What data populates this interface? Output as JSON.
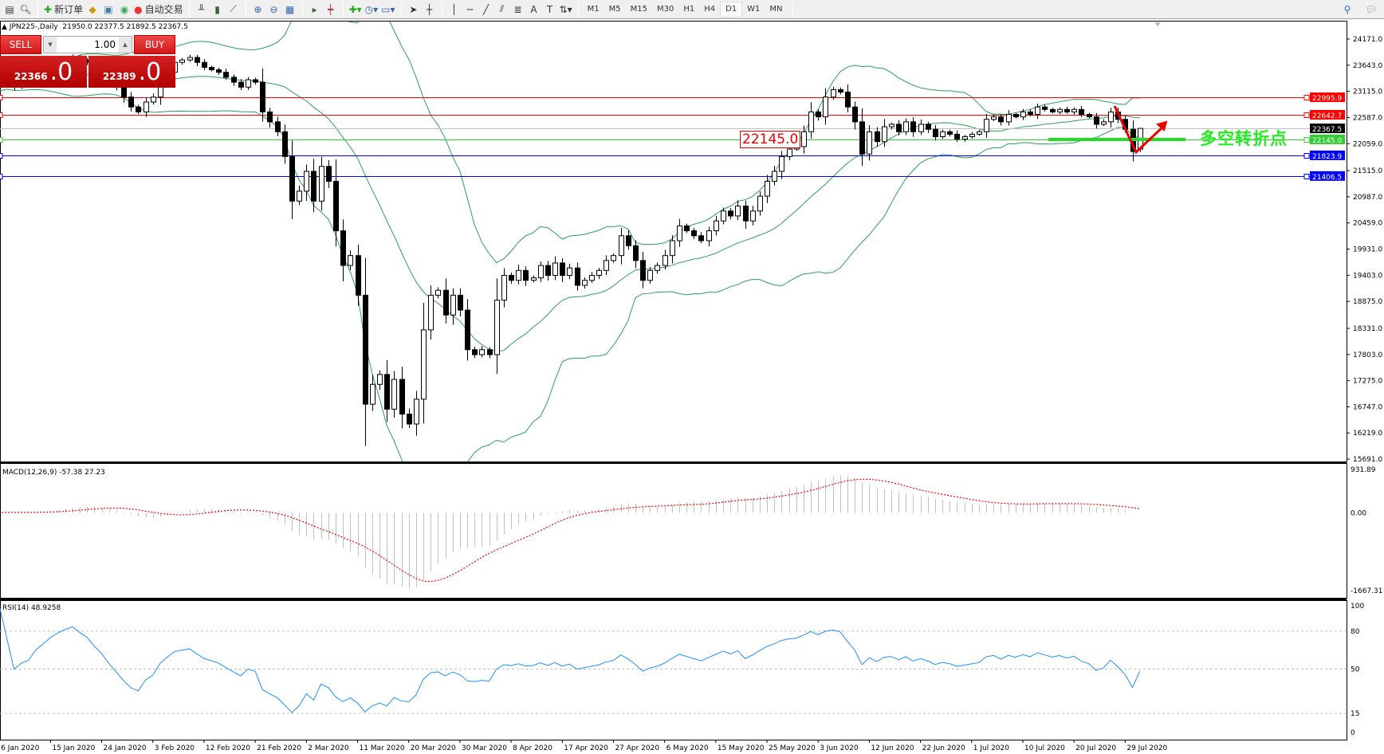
{
  "toolbar": {
    "new_order": "新订单",
    "auto_trading": "自动交易",
    "timeframes": [
      "M1",
      "M5",
      "M15",
      "M30",
      "H1",
      "H4",
      "D1",
      "W1",
      "MN"
    ],
    "active_timeframe": "D1"
  },
  "chart_header": {
    "symbol": "JPN225-,Daily",
    "ohlc_text": "21950.0 22377.5 21892.5 22367.5"
  },
  "trade_panel": {
    "sell_label": "SELL",
    "buy_label": "BUY",
    "lot": "1.00",
    "sell_price_main": "22366",
    "sell_price_frac": ".0",
    "buy_price_main": "22389",
    "buy_price_frac": ".0"
  },
  "annotation": {
    "price_label": "22145.0",
    "text": "多空转折点",
    "colors": {
      "text": "#22ee22",
      "line": "#22dd22",
      "arrow": "#ee0000"
    }
  },
  "chart_data": [
    {
      "type": "candlestick",
      "symbol": "JPN225-",
      "timeframe": "Daily",
      "last_bar": {
        "open": 21950.0,
        "high": 22377.5,
        "low": 21892.5,
        "close": 22367.5
      },
      "closes": [
        23200,
        23350,
        23300,
        23200,
        23230,
        23250,
        23330,
        23400,
        23500,
        23600,
        23700,
        23800,
        23750,
        23700,
        23600,
        23500,
        23350,
        23200,
        23000,
        22800,
        22700,
        22900,
        23000,
        23300,
        23500,
        23700,
        23750,
        23800,
        23700,
        23600,
        23550,
        23500,
        23400,
        23300,
        23200,
        23350,
        23300,
        22700,
        22500,
        22300,
        21800,
        20900,
        21100,
        21500,
        20900,
        21600,
        21300,
        20300,
        19600,
        19800,
        19000,
        16800,
        17200,
        17400,
        16700,
        17300,
        16600,
        16400,
        16900,
        18300,
        19000,
        19100,
        18600,
        19000,
        18700,
        17900,
        17800,
        17900,
        17800,
        18900,
        19400,
        19300,
        19500,
        19300,
        19350,
        19600,
        19400,
        19650,
        19400,
        19550,
        19200,
        19300,
        19400,
        19500,
        19700,
        19800,
        20200,
        20000,
        19700,
        19300,
        19500,
        19600,
        19800,
        20100,
        20400,
        20300,
        20200,
        20100,
        20300,
        20500,
        20700,
        20600,
        20800,
        20500,
        20700,
        21000,
        21300,
        21500,
        21800,
        21950,
        22000,
        22300,
        22700,
        22600,
        23000,
        23150,
        23100,
        22800,
        22500,
        21850,
        22300,
        22100,
        22400,
        22450,
        22300,
        22500,
        22300,
        22450,
        22350,
        22200,
        22300,
        22250,
        22150,
        22200,
        22250,
        22300,
        22550,
        22600,
        22500,
        22650,
        22600,
        22700,
        22650,
        22800,
        22750,
        22700,
        22750,
        22700,
        22750,
        22650,
        22600,
        22450,
        22500,
        22700,
        22550,
        22350,
        21900,
        22367.5
      ],
      "x_labels": [
        {
          "bar": 1,
          "text": "6 Jan 2020"
        },
        {
          "bar": 8,
          "text": "15 Jan 2020"
        },
        {
          "bar": 15,
          "text": "24 Jan 2020"
        },
        {
          "bar": 22,
          "text": "3 Feb 2020"
        },
        {
          "bar": 29,
          "text": "12 Feb 2020"
        },
        {
          "bar": 36,
          "text": "21 Feb 2020"
        },
        {
          "bar": 43,
          "text": "2 Mar 2020"
        },
        {
          "bar": 50,
          "text": "11 Mar 2020"
        },
        {
          "bar": 57,
          "text": "20 Mar 2020"
        },
        {
          "bar": 64,
          "text": "30 Mar 2020"
        },
        {
          "bar": 71,
          "text": "8 Apr 2020"
        },
        {
          "bar": 78,
          "text": "17 Apr 2020"
        },
        {
          "bar": 85,
          "text": "27 Apr 2020"
        },
        {
          "bar": 92,
          "text": "6 May 2020"
        },
        {
          "bar": 99,
          "text": "15 May 2020"
        },
        {
          "bar": 106,
          "text": "25 May 2020"
        },
        {
          "bar": 113,
          "text": "3 Jun 2020"
        },
        {
          "bar": 120,
          "text": "12 Jun 2020"
        },
        {
          "bar": 127,
          "text": "22 Jun 2020"
        },
        {
          "bar": 134,
          "text": "1 Jul 2020"
        },
        {
          "bar": 141,
          "text": "10 Jul 2020"
        },
        {
          "bar": 148,
          "text": "20 Jul 2020"
        },
        {
          "bar": 155,
          "text": "29 Jul 2020"
        }
      ],
      "y_ticks": [
        "24171.0",
        "23643.0",
        "23115.0",
        "22587.0",
        "22059.0",
        "21515.0",
        "20987.0",
        "20459.0",
        "19931.0",
        "19403.0",
        "18875.0",
        "18331.0",
        "17803.0",
        "17275.0",
        "16747.0",
        "16219.0",
        "15691.0"
      ],
      "ylim": [
        15691.0,
        24171.0
      ],
      "indicator": "Bollinger Bands (green)",
      "hlines": [
        {
          "price": 22995.9,
          "label": "22995.9",
          "color": "#ff0000"
        },
        {
          "price": 22642.7,
          "label": "22642.7",
          "color": "#ff0000"
        },
        {
          "price": 22367.5,
          "label": "22367.5",
          "color": "#000000",
          "line": "#c0c0c0"
        },
        {
          "price": 22145.0,
          "label": "22145.0",
          "color": "#32cd32"
        },
        {
          "price": 21823.9,
          "label": "21823.9",
          "color": "#0000ff"
        },
        {
          "price": 21406.5,
          "label": "21406.5",
          "color": "#0000ff"
        }
      ]
    },
    {
      "type": "bar+line",
      "title": "MACD(12,26,9) -57.38 27.23",
      "y_ticks": [
        "931.89",
        "0.00",
        "-1667.31"
      ],
      "ylim": [
        -1667.31,
        931.89
      ],
      "colors": {
        "histogram": "#c0c0c0",
        "signal": "#ff0000"
      }
    },
    {
      "type": "line",
      "title": "RSI(14) 48.9258",
      "y_ticks": [
        "100",
        "80",
        "50",
        "15",
        "0"
      ],
      "levels": [
        80,
        50,
        15
      ],
      "ylim": [
        0,
        100
      ],
      "colors": {
        "line": "#1e90ff"
      }
    }
  ]
}
